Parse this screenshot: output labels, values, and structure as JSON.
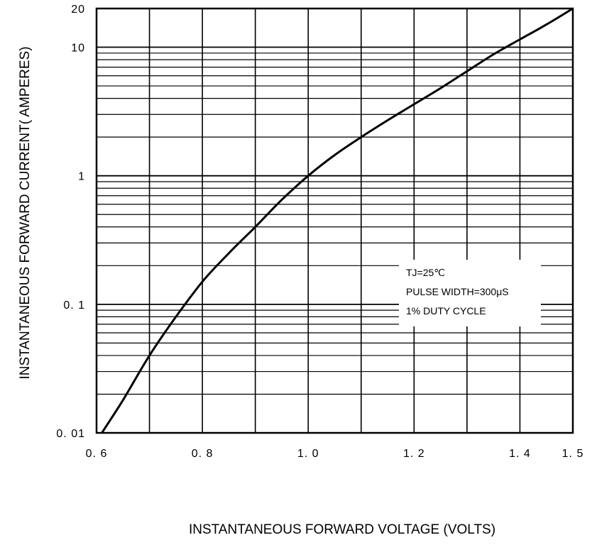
{
  "chart_data": {
    "type": "line",
    "xlabel": "INSTANTANEOUS FORWARD VOLTAGE (VOLTS)",
    "ylabel": "INSTANTANEOUS FORWARD CURRENT( AMPERES)",
    "xlim": [
      0.6,
      1.5
    ],
    "ylim": [
      0.01,
      20
    ],
    "y_scale": "log",
    "grid": true,
    "x_ticks": [
      {
        "value": 0.6,
        "label": "0. 6"
      },
      {
        "value": 0.8,
        "label": "0. 8"
      },
      {
        "value": 1.0,
        "label": "1. 0"
      },
      {
        "value": 1.2,
        "label": "1. 2"
      },
      {
        "value": 1.4,
        "label": "1. 4"
      },
      {
        "value": 1.5,
        "label": "1. 5"
      }
    ],
    "y_ticks": [
      {
        "value": 0.01,
        "label": "0. 01"
      },
      {
        "value": 0.1,
        "label": "0. 1"
      },
      {
        "value": 1,
        "label": "1"
      },
      {
        "value": 10,
        "label": "10"
      },
      {
        "value": 20,
        "label": "20"
      }
    ],
    "annotations": [
      "TJ=25℃",
      "PULSE WIDTH=300μS",
      "1% DUTY CYCLE"
    ],
    "series": [
      {
        "x": [
          0.61,
          0.65,
          0.7,
          0.75,
          0.8,
          0.85,
          0.9,
          0.95,
          1.0,
          1.05,
          1.1,
          1.15,
          1.2,
          1.25,
          1.3,
          1.35,
          1.4,
          1.45,
          1.5
        ],
        "y": [
          0.01,
          0.018,
          0.04,
          0.08,
          0.15,
          0.25,
          0.4,
          0.65,
          1.0,
          1.45,
          2.0,
          2.7,
          3.6,
          4.8,
          6.5,
          8.8,
          11.5,
          15,
          20
        ]
      }
    ],
    "colors": {
      "line": "#000000",
      "grid": "#000000",
      "background": "#ffffff"
    }
  }
}
